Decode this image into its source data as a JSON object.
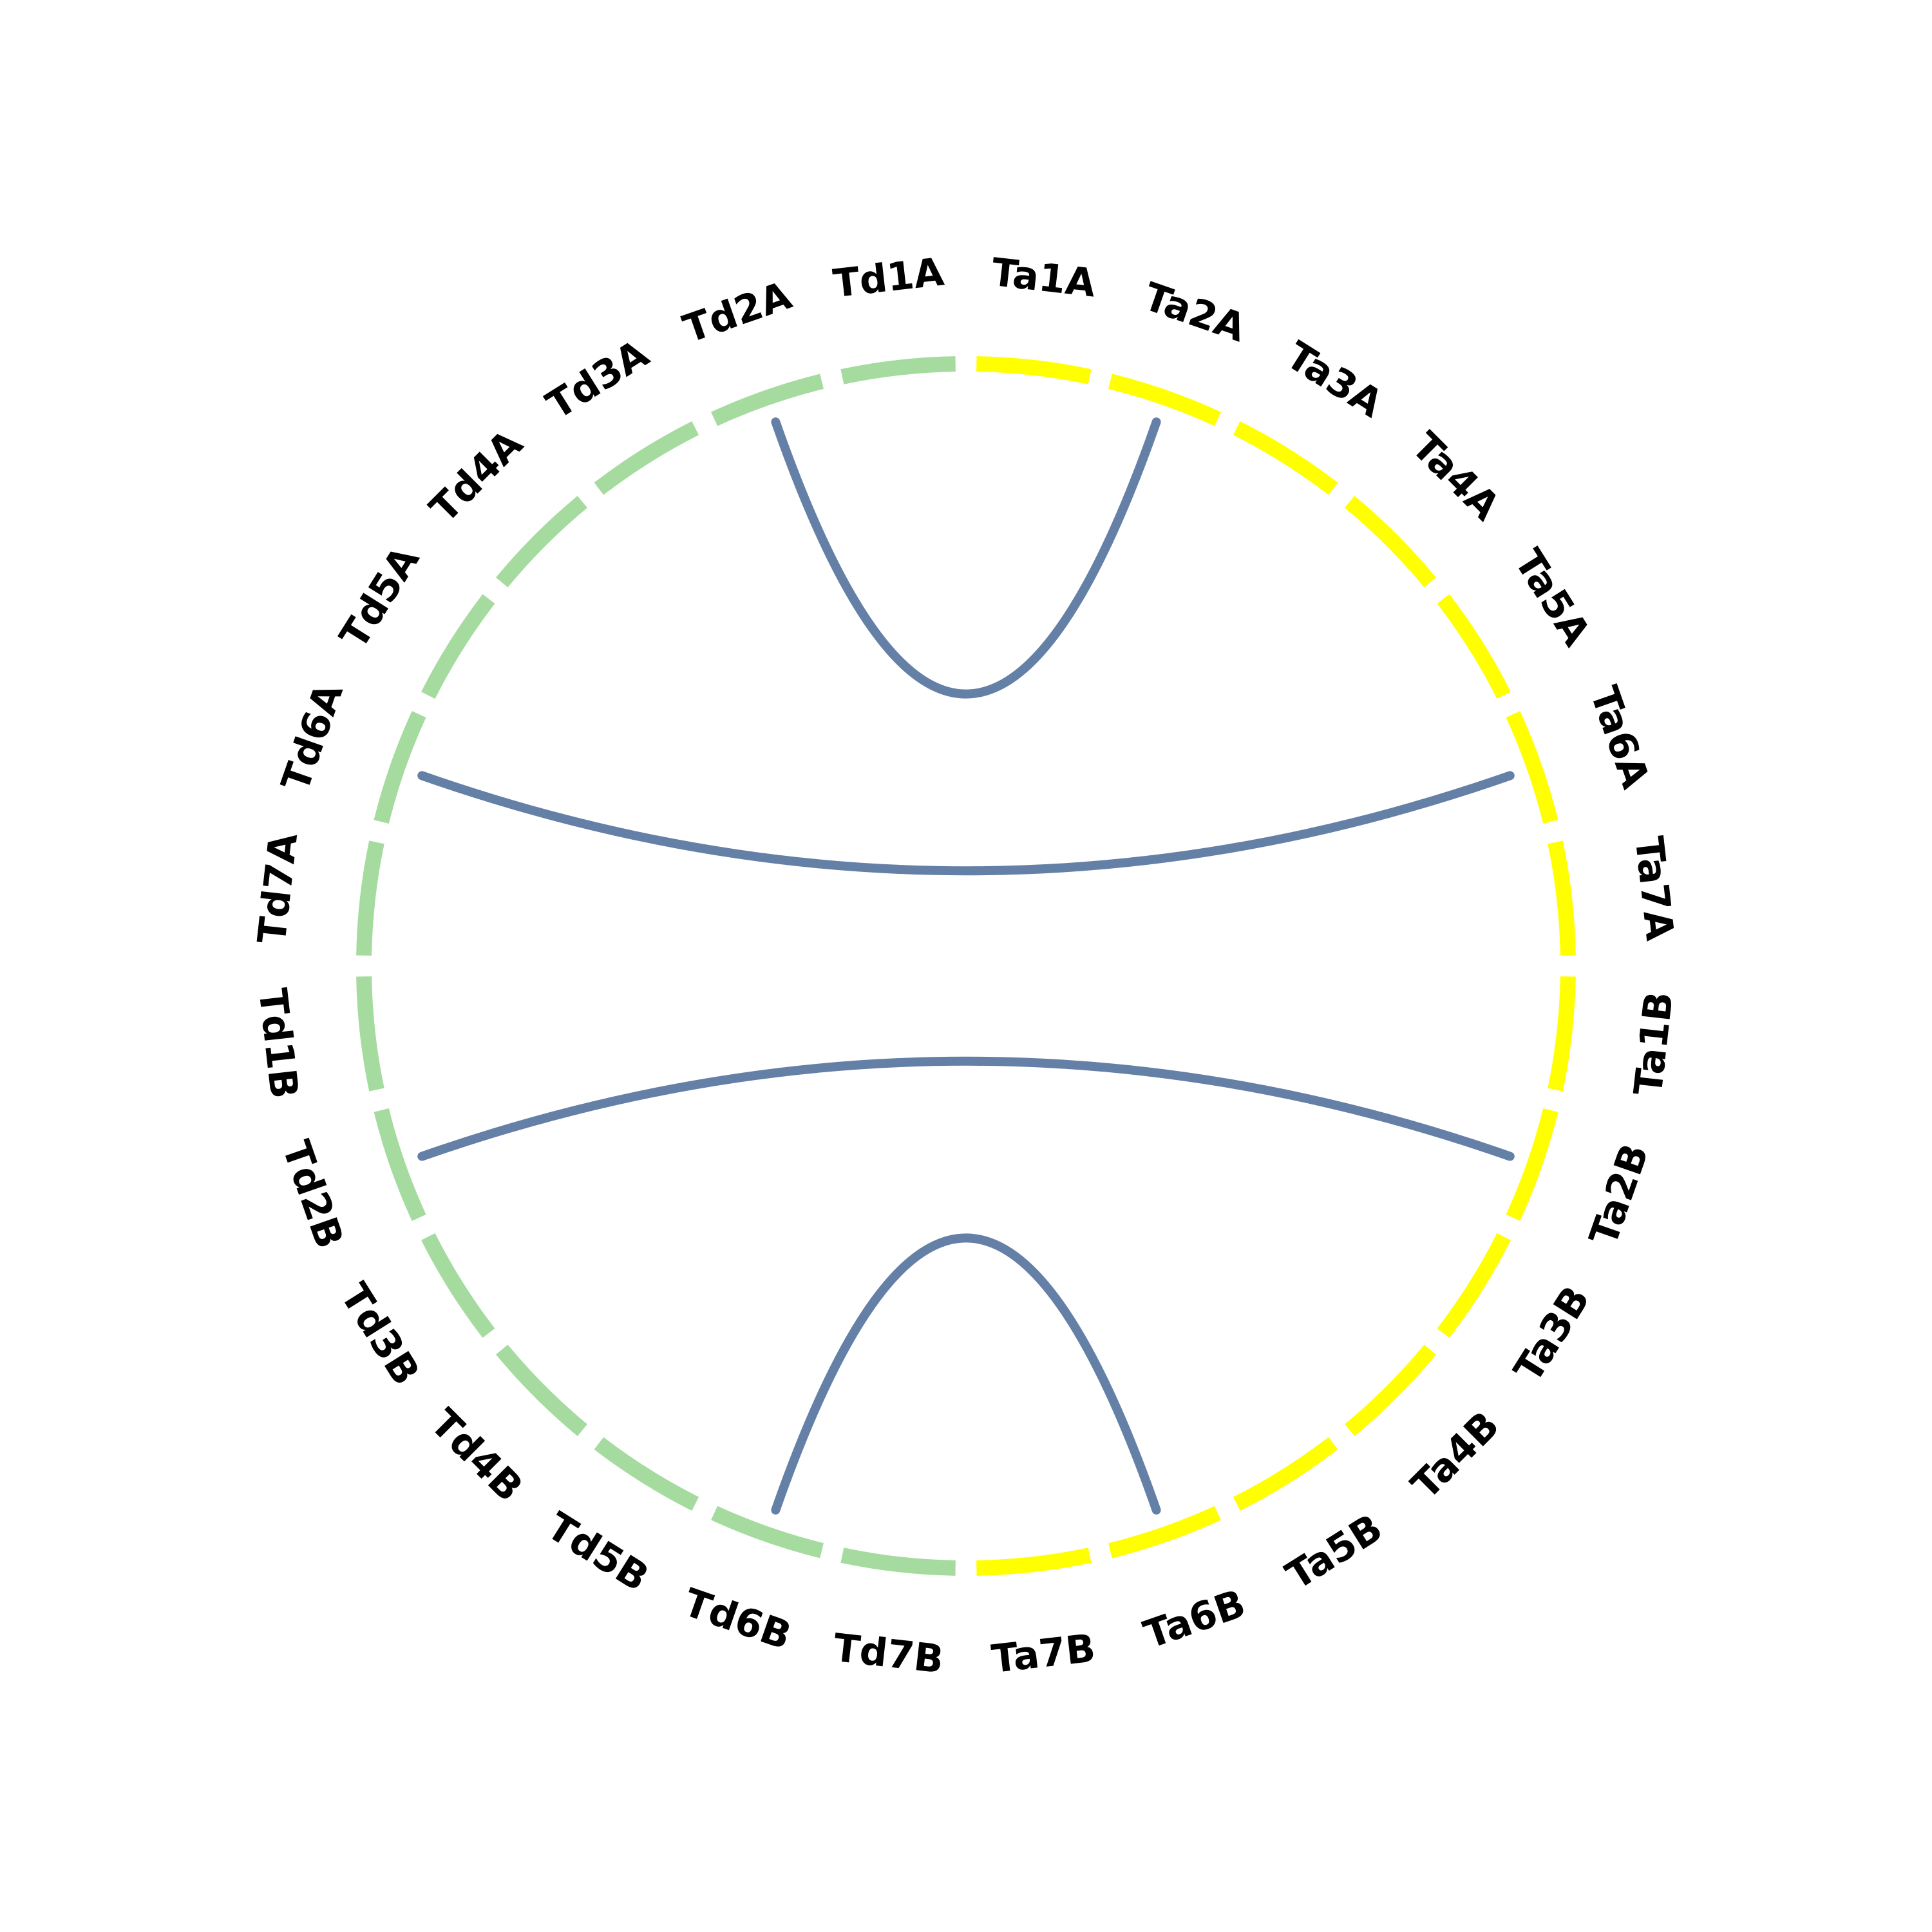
{
  "colors": {
    "td_segment": "#a6dba0",
    "ta_segment": "#ffff00",
    "link": "#6580a6",
    "background": "#ffffff"
  },
  "segments": [
    {
      "label": "Ta1A",
      "group": "ta"
    },
    {
      "label": "Ta2A",
      "group": "ta"
    },
    {
      "label": "Ta3A",
      "group": "ta"
    },
    {
      "label": "Ta4A",
      "group": "ta"
    },
    {
      "label": "Ta5A",
      "group": "ta"
    },
    {
      "label": "Ta6A",
      "group": "ta"
    },
    {
      "label": "Ta7A",
      "group": "ta"
    },
    {
      "label": "Ta1B",
      "group": "ta"
    },
    {
      "label": "Ta2B",
      "group": "ta"
    },
    {
      "label": "Ta3B",
      "group": "ta"
    },
    {
      "label": "Ta4B",
      "group": "ta"
    },
    {
      "label": "Ta5B",
      "group": "ta"
    },
    {
      "label": "Ta6B",
      "group": "ta"
    },
    {
      "label": "Ta7B",
      "group": "ta"
    },
    {
      "label": "Td7B",
      "group": "td"
    },
    {
      "label": "Td6B",
      "group": "td"
    },
    {
      "label": "Td5B",
      "group": "td"
    },
    {
      "label": "Td4B",
      "group": "td"
    },
    {
      "label": "Td3B",
      "group": "td"
    },
    {
      "label": "Td2B",
      "group": "td"
    },
    {
      "label": "Td1B",
      "group": "td"
    },
    {
      "label": "Td7A",
      "group": "td"
    },
    {
      "label": "Td6A",
      "group": "td"
    },
    {
      "label": "Td5A",
      "group": "td"
    },
    {
      "label": "Td4A",
      "group": "td"
    },
    {
      "label": "Td3A",
      "group": "td"
    },
    {
      "label": "Td2A",
      "group": "td"
    },
    {
      "label": "Td1A",
      "group": "td"
    }
  ],
  "links": [
    {
      "from": "Td2A",
      "to": "Ta2A"
    },
    {
      "from": "Td6A",
      "to": "Ta6A"
    },
    {
      "from": "Td2B",
      "to": "Ta2B"
    },
    {
      "from": "Td6B",
      "to": "Ta6B"
    }
  ]
}
